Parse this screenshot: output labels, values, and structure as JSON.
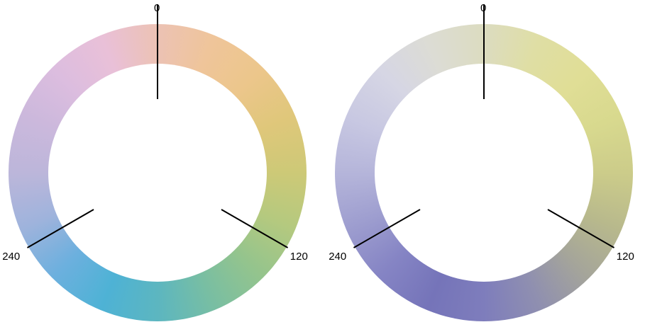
{
  "wheels": [
    {
      "id": "left",
      "tick_labels": [
        "0",
        "120",
        "240"
      ],
      "colors_clockwise_from_top": [
        "#ecc2b4",
        "#efc59a",
        "#ecc68b",
        "#dfc77a",
        "#cdc977",
        "#b4c97f",
        "#94c48d",
        "#78bea3",
        "#5cb6c0",
        "#4eb2d5",
        "#6cb0de",
        "#9eb3dc",
        "#bcb6da",
        "#cbb8dc",
        "#dcbddf",
        "#e9c0d8",
        "#ecc2b4"
      ]
    },
    {
      "id": "right",
      "tick_labels": [
        "0",
        "120",
        "240"
      ],
      "colors_clockwise_from_top": [
        "#dcdcc0",
        "#dfdea4",
        "#e0de96",
        "#d8d98e",
        "#cccc8a",
        "#b8b98c",
        "#a5a59a",
        "#8f8fb0",
        "#7e7dbc",
        "#7574b9",
        "#8584c4",
        "#9d9dcf",
        "#b5b5da",
        "#c8c8e2",
        "#d6d6e4",
        "#dcdcd4",
        "#dcdcc0"
      ]
    }
  ]
}
